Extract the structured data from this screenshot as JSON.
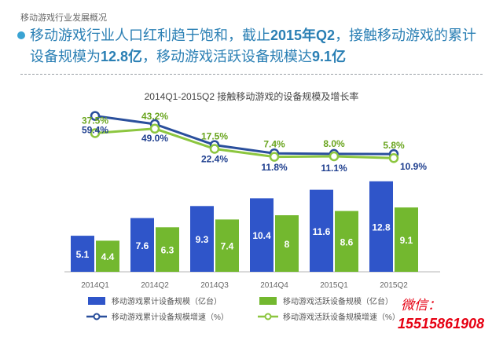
{
  "header": {
    "section_label": "移动游戏行业发展概况"
  },
  "headline": {
    "part1": "移动游戏行业人口红利趋于饱和，截止",
    "period": "2015年Q2",
    "part2": "，接触移动游戏的累计设备规模为",
    "total_devices": "12.8亿",
    "part3": "，移动游戏活跃设备规模达",
    "active_devices": "9.1亿"
  },
  "chart_data": {
    "type": "bar",
    "title": "2014Q1-2015Q2 接触移动游戏的设备规模及增长率",
    "categories": [
      "2014Q1",
      "2014Q2",
      "2014Q3",
      "2014Q4",
      "2015Q1",
      "2015Q2"
    ],
    "series": [
      {
        "name": "移动游戏累计设备规模（亿台）",
        "type": "bar",
        "color": "#2f55c9",
        "values": [
          5.1,
          7.6,
          9.3,
          10.4,
          11.6,
          12.8
        ]
      },
      {
        "name": "移动游戏活跃设备规模（亿台）",
        "type": "bar",
        "color": "#73b82f",
        "values": [
          4.4,
          6.3,
          7.4,
          8.0,
          8.6,
          9.1
        ]
      },
      {
        "name": "移动游戏累计设备规模增速（%）",
        "type": "line",
        "color": "#2a4f9c",
        "values": [
          59.4,
          49.0,
          22.4,
          11.8,
          11.1,
          10.9
        ],
        "labels": [
          "59.4%",
          "49.0%",
          "22.4%",
          "11.8%",
          "11.1%",
          "10.9%"
        ]
      },
      {
        "name": "移动游戏活跃设备规模增速（%）",
        "type": "line",
        "color": "#8cc63f",
        "values": [
          37.5,
          43.2,
          17.5,
          7.4,
          8.0,
          5.8
        ],
        "labels": [
          "37.5%",
          "43.2%",
          "17.5%",
          "7.4%",
          "8.0%",
          "5.8%"
        ]
      }
    ],
    "bar_ylim": [
      0,
      14
    ],
    "legend_position": "bottom",
    "grid": false
  },
  "watermark": {
    "label": "微信：",
    "number": "15515861908"
  }
}
